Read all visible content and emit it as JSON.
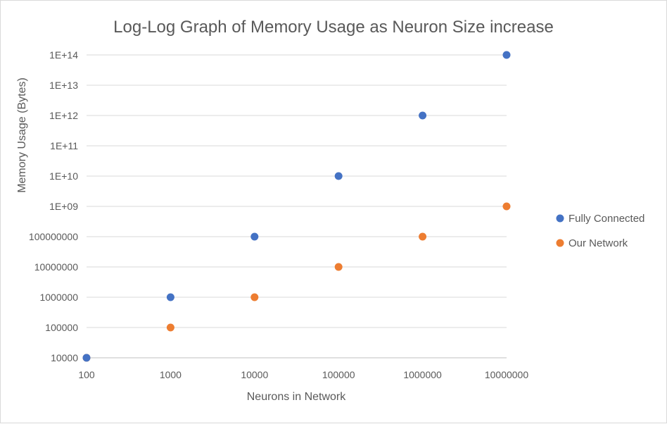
{
  "chart_data": {
    "type": "scatter",
    "title": "Log-Log Graph of Memory Usage as Neuron Size increase",
    "xlabel": "Neurons in Network",
    "ylabel": "Memory Usage (Bytes)",
    "x_scale": "log",
    "y_scale": "log",
    "xlim": [
      100,
      10000000
    ],
    "ylim": [
      10000,
      100000000000000
    ],
    "x_ticks": [
      "100",
      "1000",
      "10000",
      "100000",
      "1000000",
      "10000000"
    ],
    "y_ticks": [
      "10000",
      "100000",
      "1000000",
      "10000000",
      "100000000",
      "1E+09",
      "1E+10",
      "1E+11",
      "1E+12",
      "1E+13",
      "1E+14"
    ],
    "grid": "horizontal",
    "legend_position": "right",
    "series": [
      {
        "name": "Fully Connected",
        "color": "#4472c4",
        "points": [
          {
            "x": 100,
            "y": 10000
          },
          {
            "x": 1000,
            "y": 1000000
          },
          {
            "x": 10000,
            "y": 100000000
          },
          {
            "x": 100000,
            "y": 10000000000
          },
          {
            "x": 1000000,
            "y": 1000000000000
          },
          {
            "x": 10000000,
            "y": 100000000000000
          }
        ]
      },
      {
        "name": "Our Network",
        "color": "#ed7d31",
        "points": [
          {
            "x": 100,
            "y": 10000
          },
          {
            "x": 1000,
            "y": 100000
          },
          {
            "x": 10000,
            "y": 1000000
          },
          {
            "x": 100000,
            "y": 10000000
          },
          {
            "x": 1000000,
            "y": 100000000
          },
          {
            "x": 10000000,
            "y": 1000000000
          }
        ]
      }
    ]
  }
}
